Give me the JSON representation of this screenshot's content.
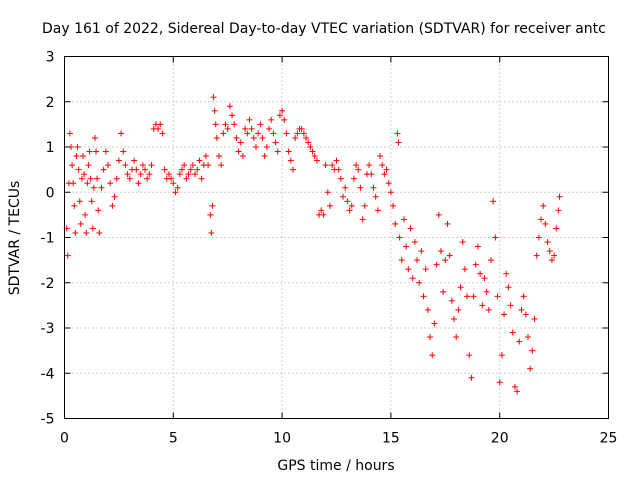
{
  "chart_data": {
    "type": "scatter",
    "title": "Day 161 of 2022, Sidereal Day-to-day VTEC variation (SDTVAR) for receiver antc",
    "xlabel": "GPS time / hours",
    "ylabel": "SDTVAR / TECUs",
    "xlim": [
      0,
      25
    ],
    "ylim": [
      -5,
      3
    ],
    "xticks": [
      "0",
      "5",
      "10",
      "15",
      "20",
      "25"
    ],
    "yticks": [
      "3",
      "2",
      "1",
      "0",
      "-1",
      "-2",
      "-3",
      "-4",
      "-5"
    ],
    "grid": true,
    "legend": "none",
    "marker": "plus",
    "color": "#ff0000",
    "series": [
      {
        "name": "SDTVAR",
        "points": [
          [
            0.1,
            -0.8
          ],
          [
            0.15,
            -1.4
          ],
          [
            0.2,
            0.2
          ],
          [
            0.25,
            1.3
          ],
          [
            0.3,
            1.0
          ],
          [
            0.35,
            0.6
          ],
          [
            0.4,
            0.2
          ],
          [
            0.45,
            -0.3
          ],
          [
            0.5,
            -0.9
          ],
          [
            0.55,
            0.8
          ],
          [
            0.6,
            1.0
          ],
          [
            0.65,
            0.5
          ],
          [
            0.7,
            -0.2
          ],
          [
            0.75,
            -0.7
          ],
          [
            0.8,
            0.3
          ],
          [
            0.85,
            0.8
          ],
          [
            0.9,
            0.4
          ],
          [
            0.95,
            -0.5
          ],
          [
            1.0,
            -0.9
          ],
          [
            1.05,
            0.2
          ],
          [
            1.1,
            0.6
          ],
          [
            1.15,
            0.9
          ],
          [
            1.2,
            0.3
          ],
          [
            1.25,
            -0.2
          ],
          [
            1.3,
            -0.8
          ],
          [
            1.35,
            0.1
          ],
          [
            1.4,
            1.2
          ],
          [
            1.45,
            0.9
          ],
          [
            1.5,
            0.3
          ],
          [
            1.55,
            -0.4
          ],
          [
            1.6,
            -0.9
          ],
          [
            1.7,
            0.1
          ],
          [
            1.8,
            0.5
          ],
          [
            1.9,
            0.9
          ],
          [
            2.0,
            0.6
          ],
          [
            2.1,
            0.2
          ],
          [
            2.2,
            -0.3
          ],
          [
            2.3,
            -0.1
          ],
          [
            2.4,
            0.3
          ],
          [
            2.5,
            0.7
          ],
          [
            2.6,
            1.3
          ],
          [
            2.7,
            0.9
          ],
          [
            2.8,
            0.6
          ],
          [
            2.9,
            0.4
          ],
          [
            3.0,
            0.3
          ],
          [
            3.1,
            0.5
          ],
          [
            3.2,
            0.7
          ],
          [
            3.3,
            0.5
          ],
          [
            3.4,
            0.2
          ],
          [
            3.5,
            0.4
          ],
          [
            3.6,
            0.6
          ],
          [
            3.7,
            0.5
          ],
          [
            3.8,
            0.3
          ],
          [
            3.9,
            0.4
          ],
          [
            4.0,
            0.6
          ],
          [
            4.1,
            1.4
          ],
          [
            4.2,
            1.5
          ],
          [
            4.3,
            1.4
          ],
          [
            4.4,
            1.5
          ],
          [
            4.5,
            1.3
          ],
          [
            4.6,
            0.5
          ],
          [
            4.7,
            0.3
          ],
          [
            4.8,
            0.4
          ],
          [
            4.9,
            0.3
          ],
          [
            5.0,
            0.2
          ],
          [
            5.1,
            0.0
          ],
          [
            5.2,
            0.1
          ],
          [
            5.3,
            0.4
          ],
          [
            5.4,
            0.5
          ],
          [
            5.5,
            0.6
          ],
          [
            5.6,
            0.3
          ],
          [
            5.7,
            0.4
          ],
          [
            5.8,
            0.5
          ],
          [
            5.9,
            0.6
          ],
          [
            6.0,
            0.4
          ],
          [
            6.1,
            0.5
          ],
          [
            6.2,
            0.7
          ],
          [
            6.3,
            0.3
          ],
          [
            6.4,
            0.6
          ],
          [
            6.5,
            0.8
          ],
          [
            6.6,
            0.6
          ],
          [
            6.7,
            -0.5
          ],
          [
            6.75,
            -0.9
          ],
          [
            6.8,
            -0.3
          ],
          [
            6.85,
            2.1
          ],
          [
            6.9,
            1.8
          ],
          [
            6.95,
            1.5
          ],
          [
            7.0,
            1.2
          ],
          [
            7.1,
            0.8
          ],
          [
            7.2,
            0.6
          ],
          [
            7.3,
            1.3
          ],
          [
            7.4,
            1.5
          ],
          [
            7.5,
            1.4
          ],
          [
            7.6,
            1.9
          ],
          [
            7.7,
            1.7
          ],
          [
            7.8,
            1.5
          ],
          [
            7.9,
            1.2
          ],
          [
            8.0,
            0.9
          ],
          [
            8.1,
            1.1
          ],
          [
            8.2,
            0.8
          ],
          [
            8.3,
            1.4
          ],
          [
            8.4,
            1.3
          ],
          [
            8.5,
            1.6
          ],
          [
            8.6,
            1.4
          ],
          [
            8.7,
            1.2
          ],
          [
            8.8,
            1.0
          ],
          [
            8.9,
            1.3
          ],
          [
            9.0,
            1.5
          ],
          [
            9.1,
            1.2
          ],
          [
            9.2,
            0.8
          ],
          [
            9.3,
            1.0
          ],
          [
            9.4,
            1.4
          ],
          [
            9.5,
            1.6
          ],
          [
            9.6,
            1.3
          ],
          [
            9.7,
            1.1
          ],
          [
            9.8,
            0.9
          ],
          [
            9.9,
            1.7
          ],
          [
            10.0,
            1.8
          ],
          [
            10.1,
            1.6
          ],
          [
            10.2,
            1.3
          ],
          [
            10.3,
            0.9
          ],
          [
            10.4,
            0.7
          ],
          [
            10.5,
            0.5
          ],
          [
            10.6,
            1.2
          ],
          [
            10.7,
            1.3
          ],
          [
            10.8,
            1.4
          ],
          [
            10.9,
            1.4
          ],
          [
            11.0,
            1.3
          ],
          [
            11.1,
            1.2
          ],
          [
            11.2,
            1.1
          ],
          [
            11.3,
            1.0
          ],
          [
            11.4,
            0.9
          ],
          [
            11.5,
            0.8
          ],
          [
            11.6,
            0.7
          ],
          [
            11.7,
            -0.5
          ],
          [
            11.8,
            -0.4
          ],
          [
            11.9,
            -0.5
          ],
          [
            12.0,
            0.6
          ],
          [
            12.1,
            0.0
          ],
          [
            12.2,
            -0.3
          ],
          [
            12.3,
            0.6
          ],
          [
            12.4,
            0.5
          ],
          [
            12.5,
            0.7
          ],
          [
            12.6,
            0.5
          ],
          [
            12.7,
            0.3
          ],
          [
            12.8,
            -0.1
          ],
          [
            12.9,
            0.1
          ],
          [
            13.0,
            -0.2
          ],
          [
            13.1,
            -0.4
          ],
          [
            13.2,
            -0.3
          ],
          [
            13.3,
            0.3
          ],
          [
            13.4,
            0.6
          ],
          [
            13.5,
            0.5
          ],
          [
            13.6,
            0.1
          ],
          [
            13.7,
            -0.6
          ],
          [
            13.8,
            -0.3
          ],
          [
            13.9,
            0.4
          ],
          [
            14.0,
            0.6
          ],
          [
            14.1,
            0.4
          ],
          [
            14.2,
            0.1
          ],
          [
            14.3,
            -0.1
          ],
          [
            14.4,
            -0.4
          ],
          [
            14.5,
            0.8
          ],
          [
            14.6,
            0.6
          ],
          [
            14.7,
            0.4
          ],
          [
            14.8,
            0.5
          ],
          [
            14.9,
            0.2
          ],
          [
            15.0,
            0.0
          ],
          [
            15.1,
            -0.3
          ],
          [
            15.2,
            -0.7
          ],
          [
            15.3,
            1.3
          ],
          [
            15.35,
            1.1
          ],
          [
            15.4,
            -1.0
          ],
          [
            15.5,
            -1.5
          ],
          [
            15.6,
            -0.6
          ],
          [
            15.7,
            -1.2
          ],
          [
            15.8,
            -1.7
          ],
          [
            15.9,
            -0.8
          ],
          [
            16.0,
            -1.9
          ],
          [
            16.1,
            -1.1
          ],
          [
            16.2,
            -1.5
          ],
          [
            16.3,
            -2.0
          ],
          [
            16.4,
            -1.3
          ],
          [
            16.5,
            -2.3
          ],
          [
            16.6,
            -1.7
          ],
          [
            16.7,
            -2.6
          ],
          [
            16.8,
            -3.2
          ],
          [
            16.9,
            -3.6
          ],
          [
            17.0,
            -2.9
          ],
          [
            17.1,
            -1.6
          ],
          [
            17.2,
            -0.5
          ],
          [
            17.3,
            -1.3
          ],
          [
            17.4,
            -2.2
          ],
          [
            17.5,
            -1.5
          ],
          [
            17.6,
            -0.7
          ],
          [
            17.7,
            -1.4
          ],
          [
            17.8,
            -2.4
          ],
          [
            17.9,
            -2.8
          ],
          [
            18.0,
            -3.2
          ],
          [
            18.1,
            -2.6
          ],
          [
            18.2,
            -2.1
          ],
          [
            18.3,
            -1.1
          ],
          [
            18.4,
            -1.7
          ],
          [
            18.5,
            -2.3
          ],
          [
            18.6,
            -3.6
          ],
          [
            18.7,
            -4.1
          ],
          [
            18.8,
            -2.3
          ],
          [
            18.9,
            -1.6
          ],
          [
            19.0,
            -1.2
          ],
          [
            19.1,
            -1.8
          ],
          [
            19.2,
            -2.5
          ],
          [
            19.3,
            -1.9
          ],
          [
            19.4,
            -2.2
          ],
          [
            19.5,
            -2.6
          ],
          [
            19.6,
            -1.5
          ],
          [
            19.7,
            -0.2
          ],
          [
            19.8,
            -1.0
          ],
          [
            19.9,
            -2.3
          ],
          [
            20.0,
            -4.2
          ],
          [
            20.1,
            -3.6
          ],
          [
            20.2,
            -2.7
          ],
          [
            20.3,
            -1.8
          ],
          [
            20.4,
            -2.1
          ],
          [
            20.5,
            -2.5
          ],
          [
            20.6,
            -3.1
          ],
          [
            20.7,
            -4.3
          ],
          [
            20.8,
            -4.4
          ],
          [
            20.9,
            -3.3
          ],
          [
            21.0,
            -2.6
          ],
          [
            21.1,
            -2.3
          ],
          [
            21.2,
            -2.7
          ],
          [
            21.3,
            -3.2
          ],
          [
            21.4,
            -3.9
          ],
          [
            21.5,
            -3.5
          ],
          [
            21.6,
            -2.8
          ],
          [
            21.7,
            -1.4
          ],
          [
            21.8,
            -1.0
          ],
          [
            21.9,
            -0.6
          ],
          [
            22.0,
            -0.3
          ],
          [
            22.1,
            -0.7
          ],
          [
            22.2,
            -1.1
          ],
          [
            22.3,
            -1.3
          ],
          [
            22.4,
            -1.5
          ],
          [
            22.5,
            -1.4
          ],
          [
            22.6,
            -0.8
          ],
          [
            22.7,
            -0.4
          ],
          [
            22.75,
            -0.1
          ]
        ]
      }
    ]
  }
}
